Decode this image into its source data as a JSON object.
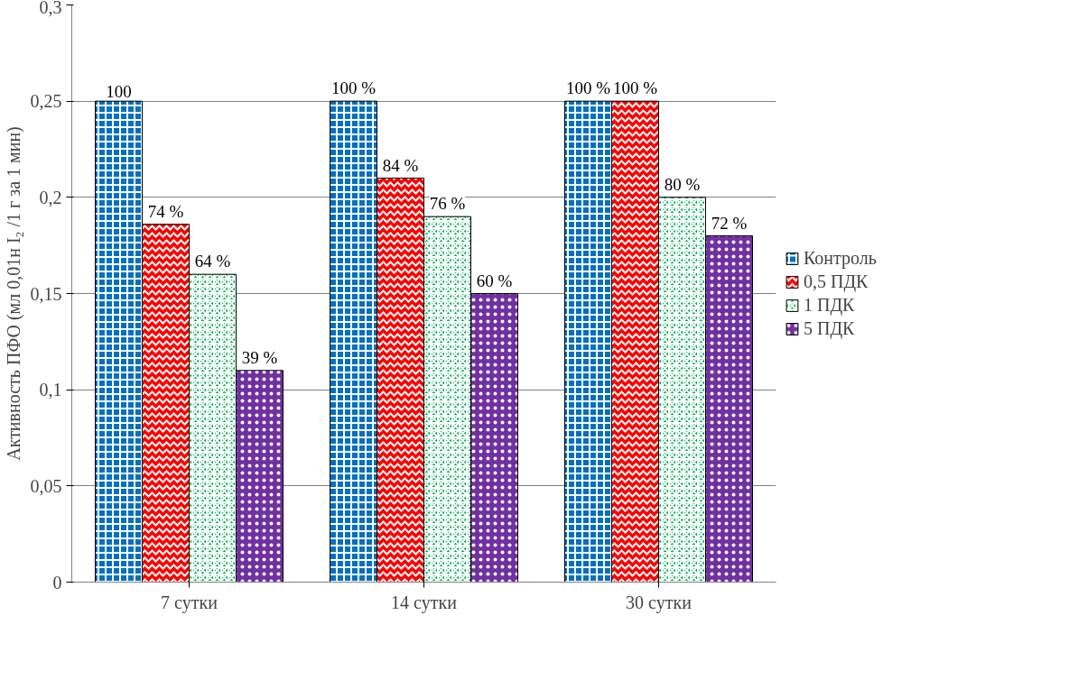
{
  "chart_data": {
    "type": "bar",
    "ylabel": "Активность ПФО (мл 0,01н I₂ /1 г за 1 мин)",
    "categories": [
      "7 сутки",
      "14 сутки",
      "30 сутки"
    ],
    "series": [
      {
        "name": "Контроль",
        "color": "#0070c0",
        "values": [
          0.25,
          0.25,
          0.25
        ]
      },
      {
        "name": "0,5 ПДК",
        "color": "#ff0000",
        "values": [
          0.186,
          0.21,
          0.25
        ]
      },
      {
        "name": "1 ПДК",
        "color": "#00b050",
        "values": [
          0.16,
          0.19,
          0.2
        ]
      },
      {
        "name": "5 ПДК",
        "color": "#7030a0",
        "values": [
          0.11,
          0.15,
          0.18
        ]
      }
    ],
    "annotations": [
      "100",
      "74 %",
      "64 %",
      "39 %",
      "100 %",
      "84 %",
      "76 %",
      "60 %",
      "100 %",
      "100 %",
      "80 %",
      "72 %"
    ],
    "ylim": [
      0,
      0.3
    ],
    "yticks": [
      0,
      {
        "value": 0.05,
        "label": "0,05"
      },
      {
        "value": 0.1,
        "label": "0,1"
      },
      {
        "value": 0.15,
        "label": "0,15"
      },
      {
        "value": 0.2,
        "label": "0,2"
      },
      {
        "value": 0.25,
        "label": "0,25"
      },
      {
        "value": 0.3,
        "label": "0,3"
      }
    ],
    "grid": "y",
    "legend": "right"
  }
}
